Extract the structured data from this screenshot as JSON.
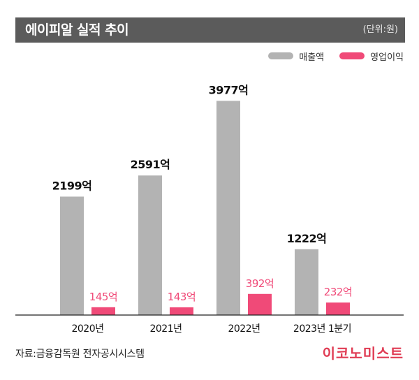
{
  "header": {
    "title": "에이피알 실적 추이",
    "unit": "(단위:원)"
  },
  "colors": {
    "revenue": "#b3b3b3",
    "profit": "#f04a78",
    "title_bg": "#5b5b5b"
  },
  "footer": {
    "source": "자료:금융감독원 전자공시시스템",
    "logo": "이코노미스트"
  },
  "chart_data": {
    "type": "bar",
    "title": "에이피알 실적 추이",
    "unit": "(단위:원)",
    "categories": [
      "2020년",
      "2021년",
      "2022년",
      "2023년 1분기"
    ],
    "series": [
      {
        "name": "매출액",
        "values": [
          2199,
          2591,
          3977,
          1222
        ],
        "labels": [
          "2199억",
          "2591억",
          "3977억",
          "1222억"
        ]
      },
      {
        "name": "영업이익",
        "values": [
          145,
          143,
          392,
          232
        ],
        "labels": [
          "145억",
          "143억",
          "392억",
          "232억"
        ]
      }
    ],
    "legend_position": "top-right",
    "grid": false
  }
}
